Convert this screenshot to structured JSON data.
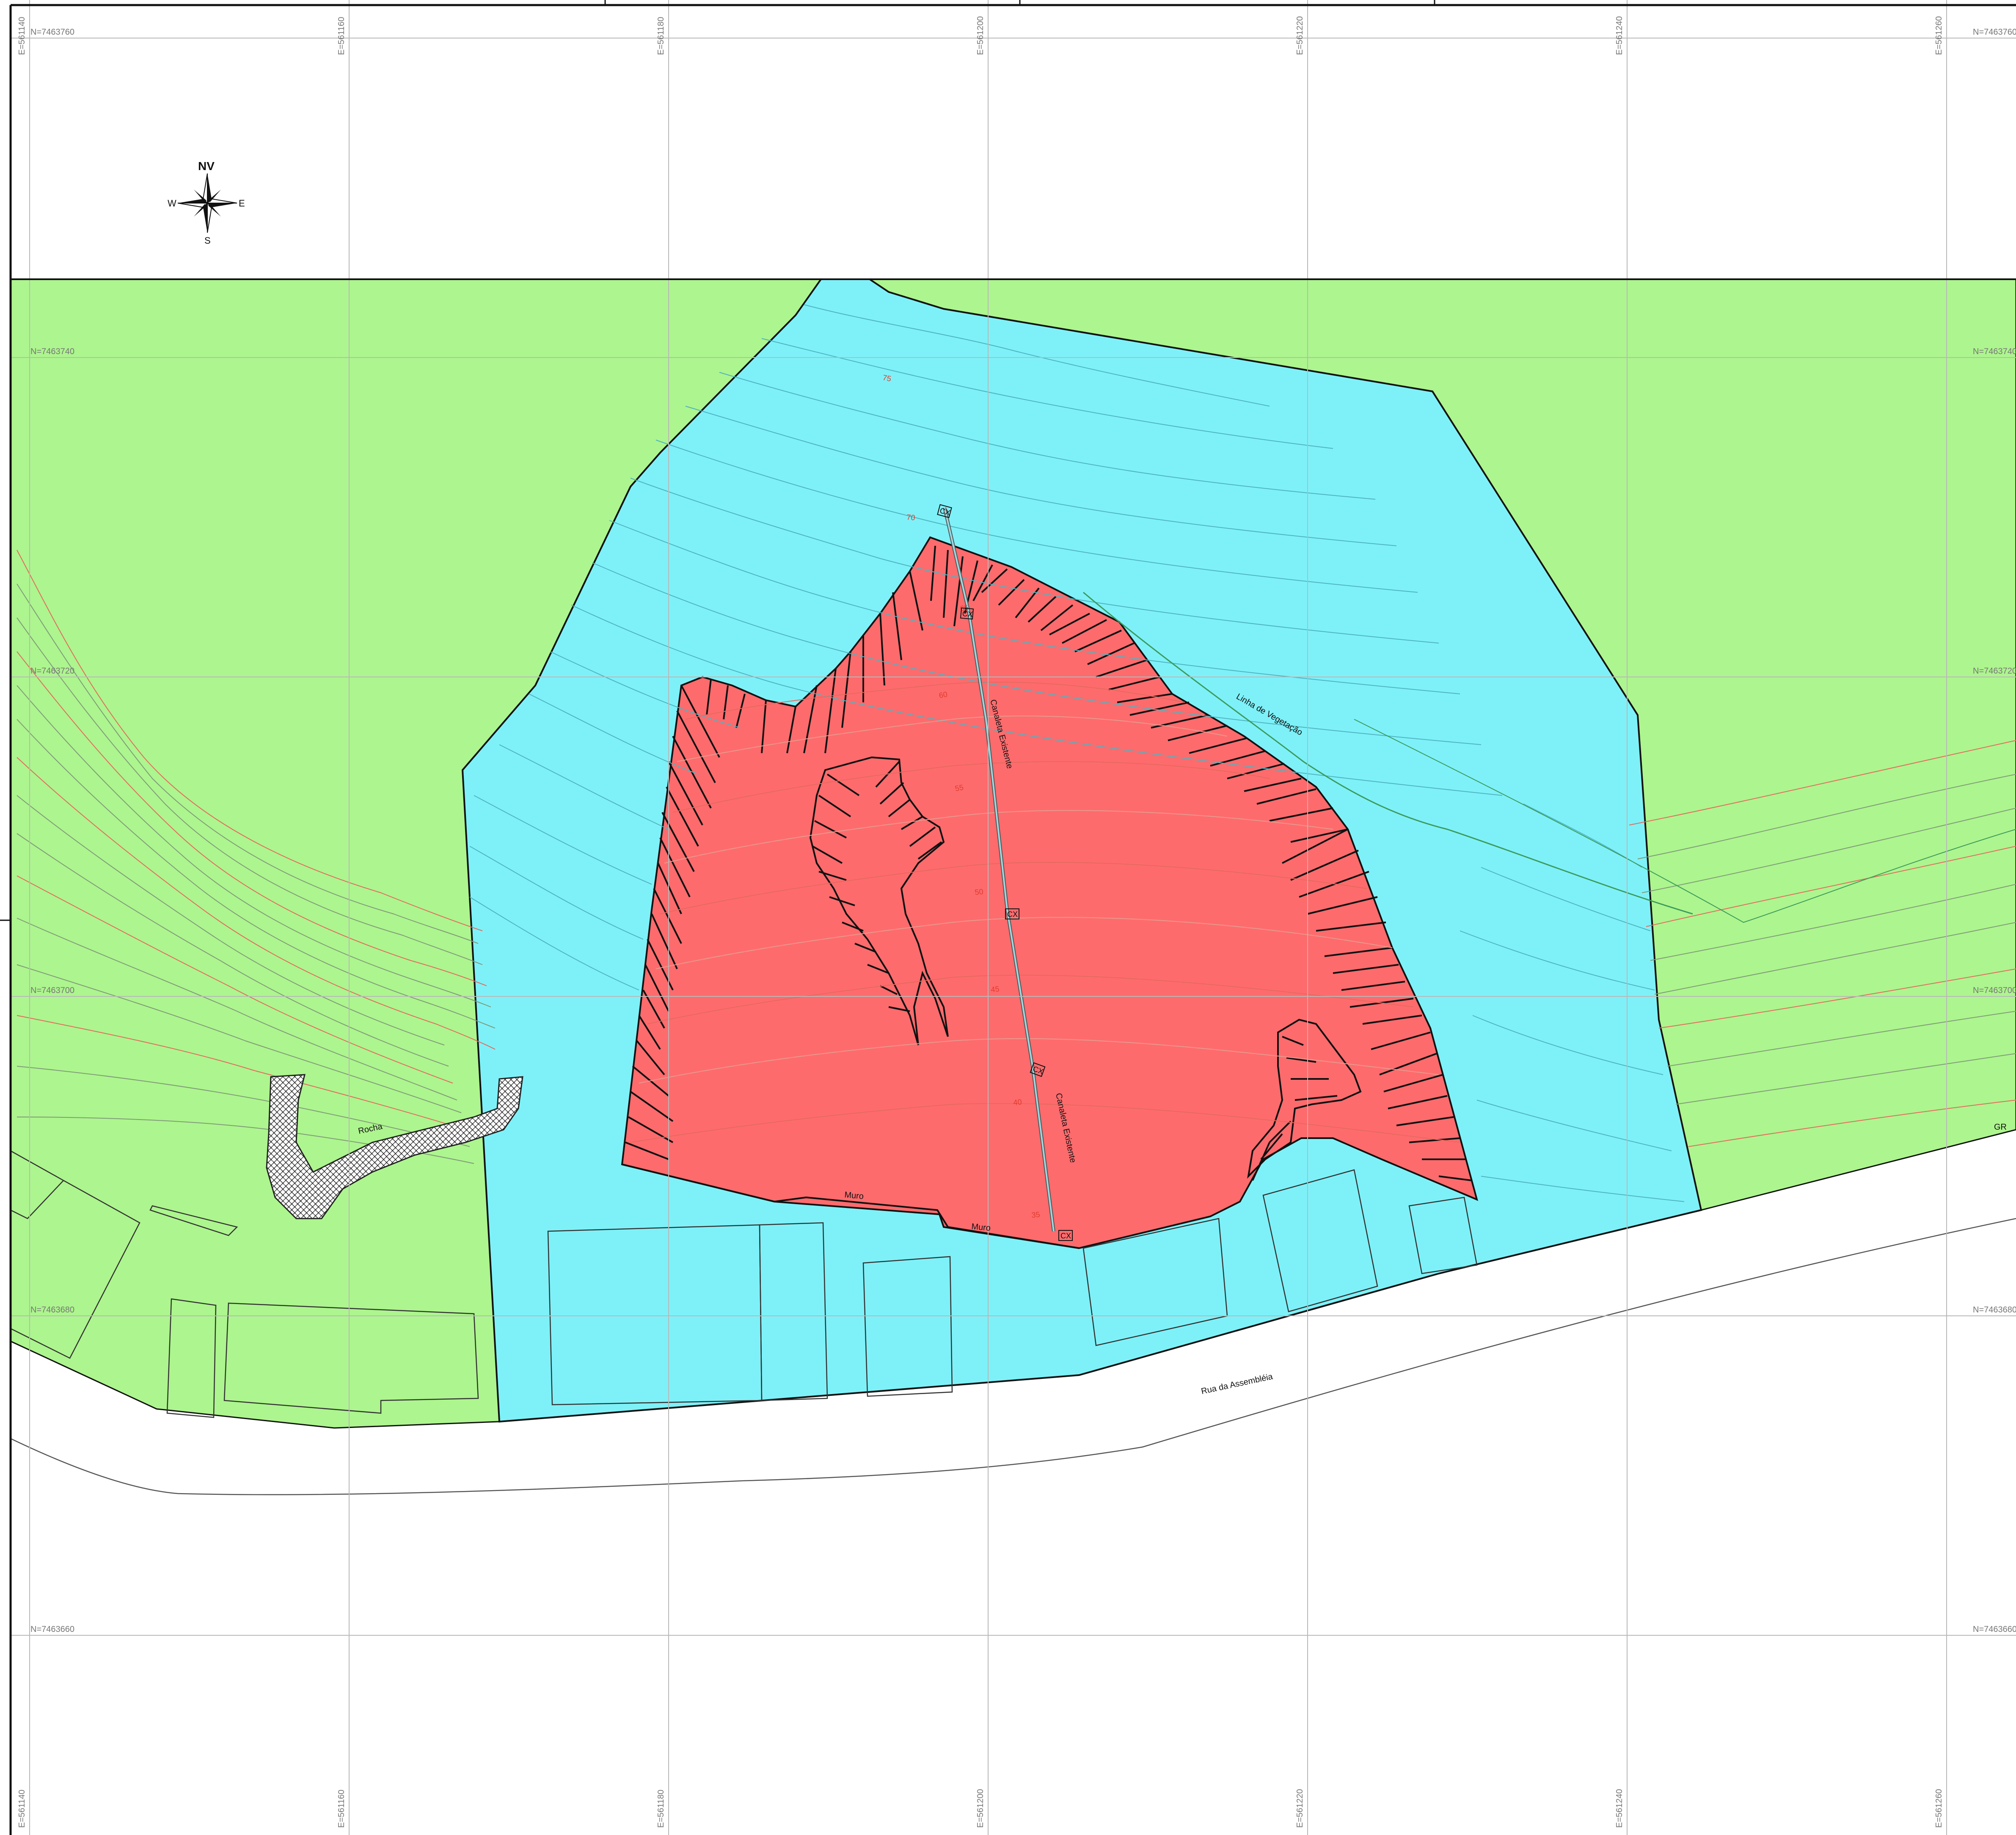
{
  "colors": {
    "vegetation": "#adf58e",
    "slope_zone": "#7ef1f8",
    "risk_zone": "#fe6b6d",
    "contour_green": "#7f9a7a",
    "contour_red": "#e56a5e",
    "contour_cyan": "#4fb3c0",
    "grid": "#b8b8b8",
    "hatch": "#111111"
  },
  "compass": {
    "north": "NV",
    "west": "W",
    "east": "E",
    "south": "S",
    "icon": "compass-rose-icon"
  },
  "grid": {
    "eastings": [
      "E=561140",
      "E=561160",
      "E=561180",
      "E=561200",
      "E=561220",
      "E=561240",
      "E=561260"
    ],
    "northings": [
      "N=7463760",
      "N=7463740",
      "N=7463720",
      "N=7463700",
      "N=7463680",
      "N=7463660"
    ]
  },
  "labels": {
    "road": "Rua da Assembléia",
    "rock": "Rocha",
    "wall_1": "Muro",
    "wall_2": "Muro",
    "vegetation_line": "Linha de Vegetação",
    "channel_1": "Canaleta Existente",
    "channel_2": "Canaleta Existente",
    "gr": "GR",
    "box": "CX"
  },
  "contour_labels": [
    "75",
    "70",
    "65",
    "60",
    "55",
    "50",
    "45",
    "40",
    "35"
  ]
}
